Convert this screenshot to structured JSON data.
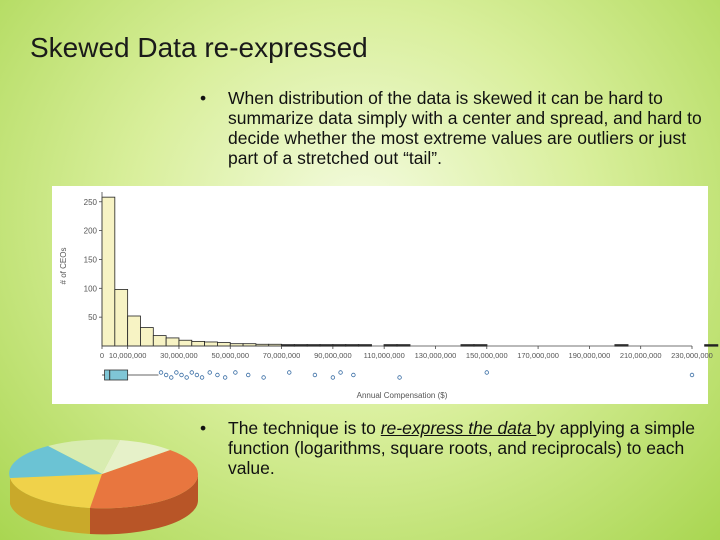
{
  "slide": {
    "title": "Skewed Data re-expressed",
    "bullet_1": "When distribution of the data is skewed it can be hard to summarize data simply with a center and spread, and hard to decide whether the most extreme values are outliers or just part of a stretched out “tail”.",
    "bullet_2_before": "The technique is to ",
    "bullet_2_emph": "re-express the data ",
    "bullet_2_after": "by applying a simple function (logarithms, square roots, and reciprocals) to each value."
  },
  "colors": {
    "background": "#d9ef9c",
    "bar_fill": "#f7f3c4",
    "boxplot_fill": "#7fc6d6",
    "pie_blue": "#6bc3d4",
    "pie_orange": "#e8763f",
    "pie_yellow": "#f0d24a",
    "pie_light": "#e6f1c9"
  },
  "chart_data": {
    "type": "bar",
    "ylabel": "# of CEOs",
    "xlabel": "Annual Compensation ($)",
    "ylim": [
      0,
      260
    ],
    "yticks": [
      50,
      100,
      150,
      200,
      250
    ],
    "ytick_labels": [
      "50",
      "100",
      "150",
      "200",
      "250"
    ],
    "xlim": [
      0,
      230000000
    ],
    "bin_width": 5000000,
    "xticks": [
      0,
      10000000,
      30000000,
      50000000,
      70000000,
      90000000,
      110000000,
      130000000,
      150000000,
      170000000,
      190000000,
      210000000,
      230000000
    ],
    "xtick_labels": [
      "0",
      "10,000,000",
      "30,000,000",
      "50,000,000",
      "70,000,000",
      "90,000,000",
      "110,000,000",
      "130,000,000",
      "150,000,000",
      "170,000,000",
      "190,000,000",
      "210,000,000",
      "230,000,000"
    ],
    "values": [
      258,
      98,
      52,
      32,
      18,
      14,
      10,
      8,
      7,
      6,
      4,
      4,
      3,
      3,
      2,
      2,
      2,
      2,
      1,
      1,
      1,
      0,
      1,
      1,
      0,
      0,
      0,
      0,
      1,
      1,
      0,
      0,
      0,
      0,
      0,
      0,
      0,
      0,
      0,
      0,
      1,
      0,
      0,
      0,
      0,
      0,
      0,
      1
    ],
    "boxplot": {
      "q1": 1000000,
      "median": 3000000,
      "q3": 10000000,
      "whisker_low": 0,
      "whisker_high": 22000000,
      "outliers": [
        23000000,
        25000000,
        27000000,
        29000000,
        31000000,
        33000000,
        35000000,
        37000000,
        39000000,
        42000000,
        45000000,
        48000000,
        52000000,
        57000000,
        63000000,
        73000000,
        83000000,
        90000000,
        93000000,
        98000000,
        116000000,
        150000000,
        230000000
      ]
    },
    "grid": false,
    "legend": "none"
  }
}
